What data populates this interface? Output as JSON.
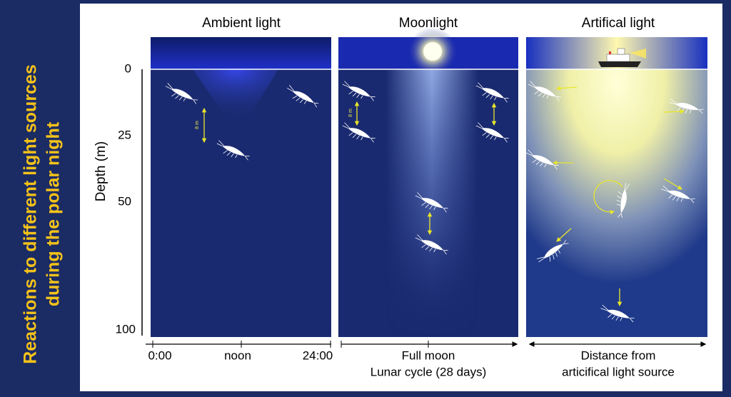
{
  "sidebar": {
    "title_lines": [
      "Reactions to different light sources",
      "during the polar night"
    ]
  },
  "depth_axis": {
    "label": "Depth (m)",
    "ticks": [
      0,
      25,
      50,
      100
    ]
  },
  "panels": [
    {
      "title": "Ambient light",
      "x_labels": [
        "0:00",
        "noon",
        "24:00"
      ],
      "annotation": "8 m"
    },
    {
      "title": "Moonlight",
      "x_labels": [
        "Full moon",
        "Lunar cycle (28 days)"
      ],
      "annotation": "8 m"
    },
    {
      "title": "Artifical light",
      "x_labels": [
        "Distance from",
        "articifical light source"
      ]
    }
  ]
}
